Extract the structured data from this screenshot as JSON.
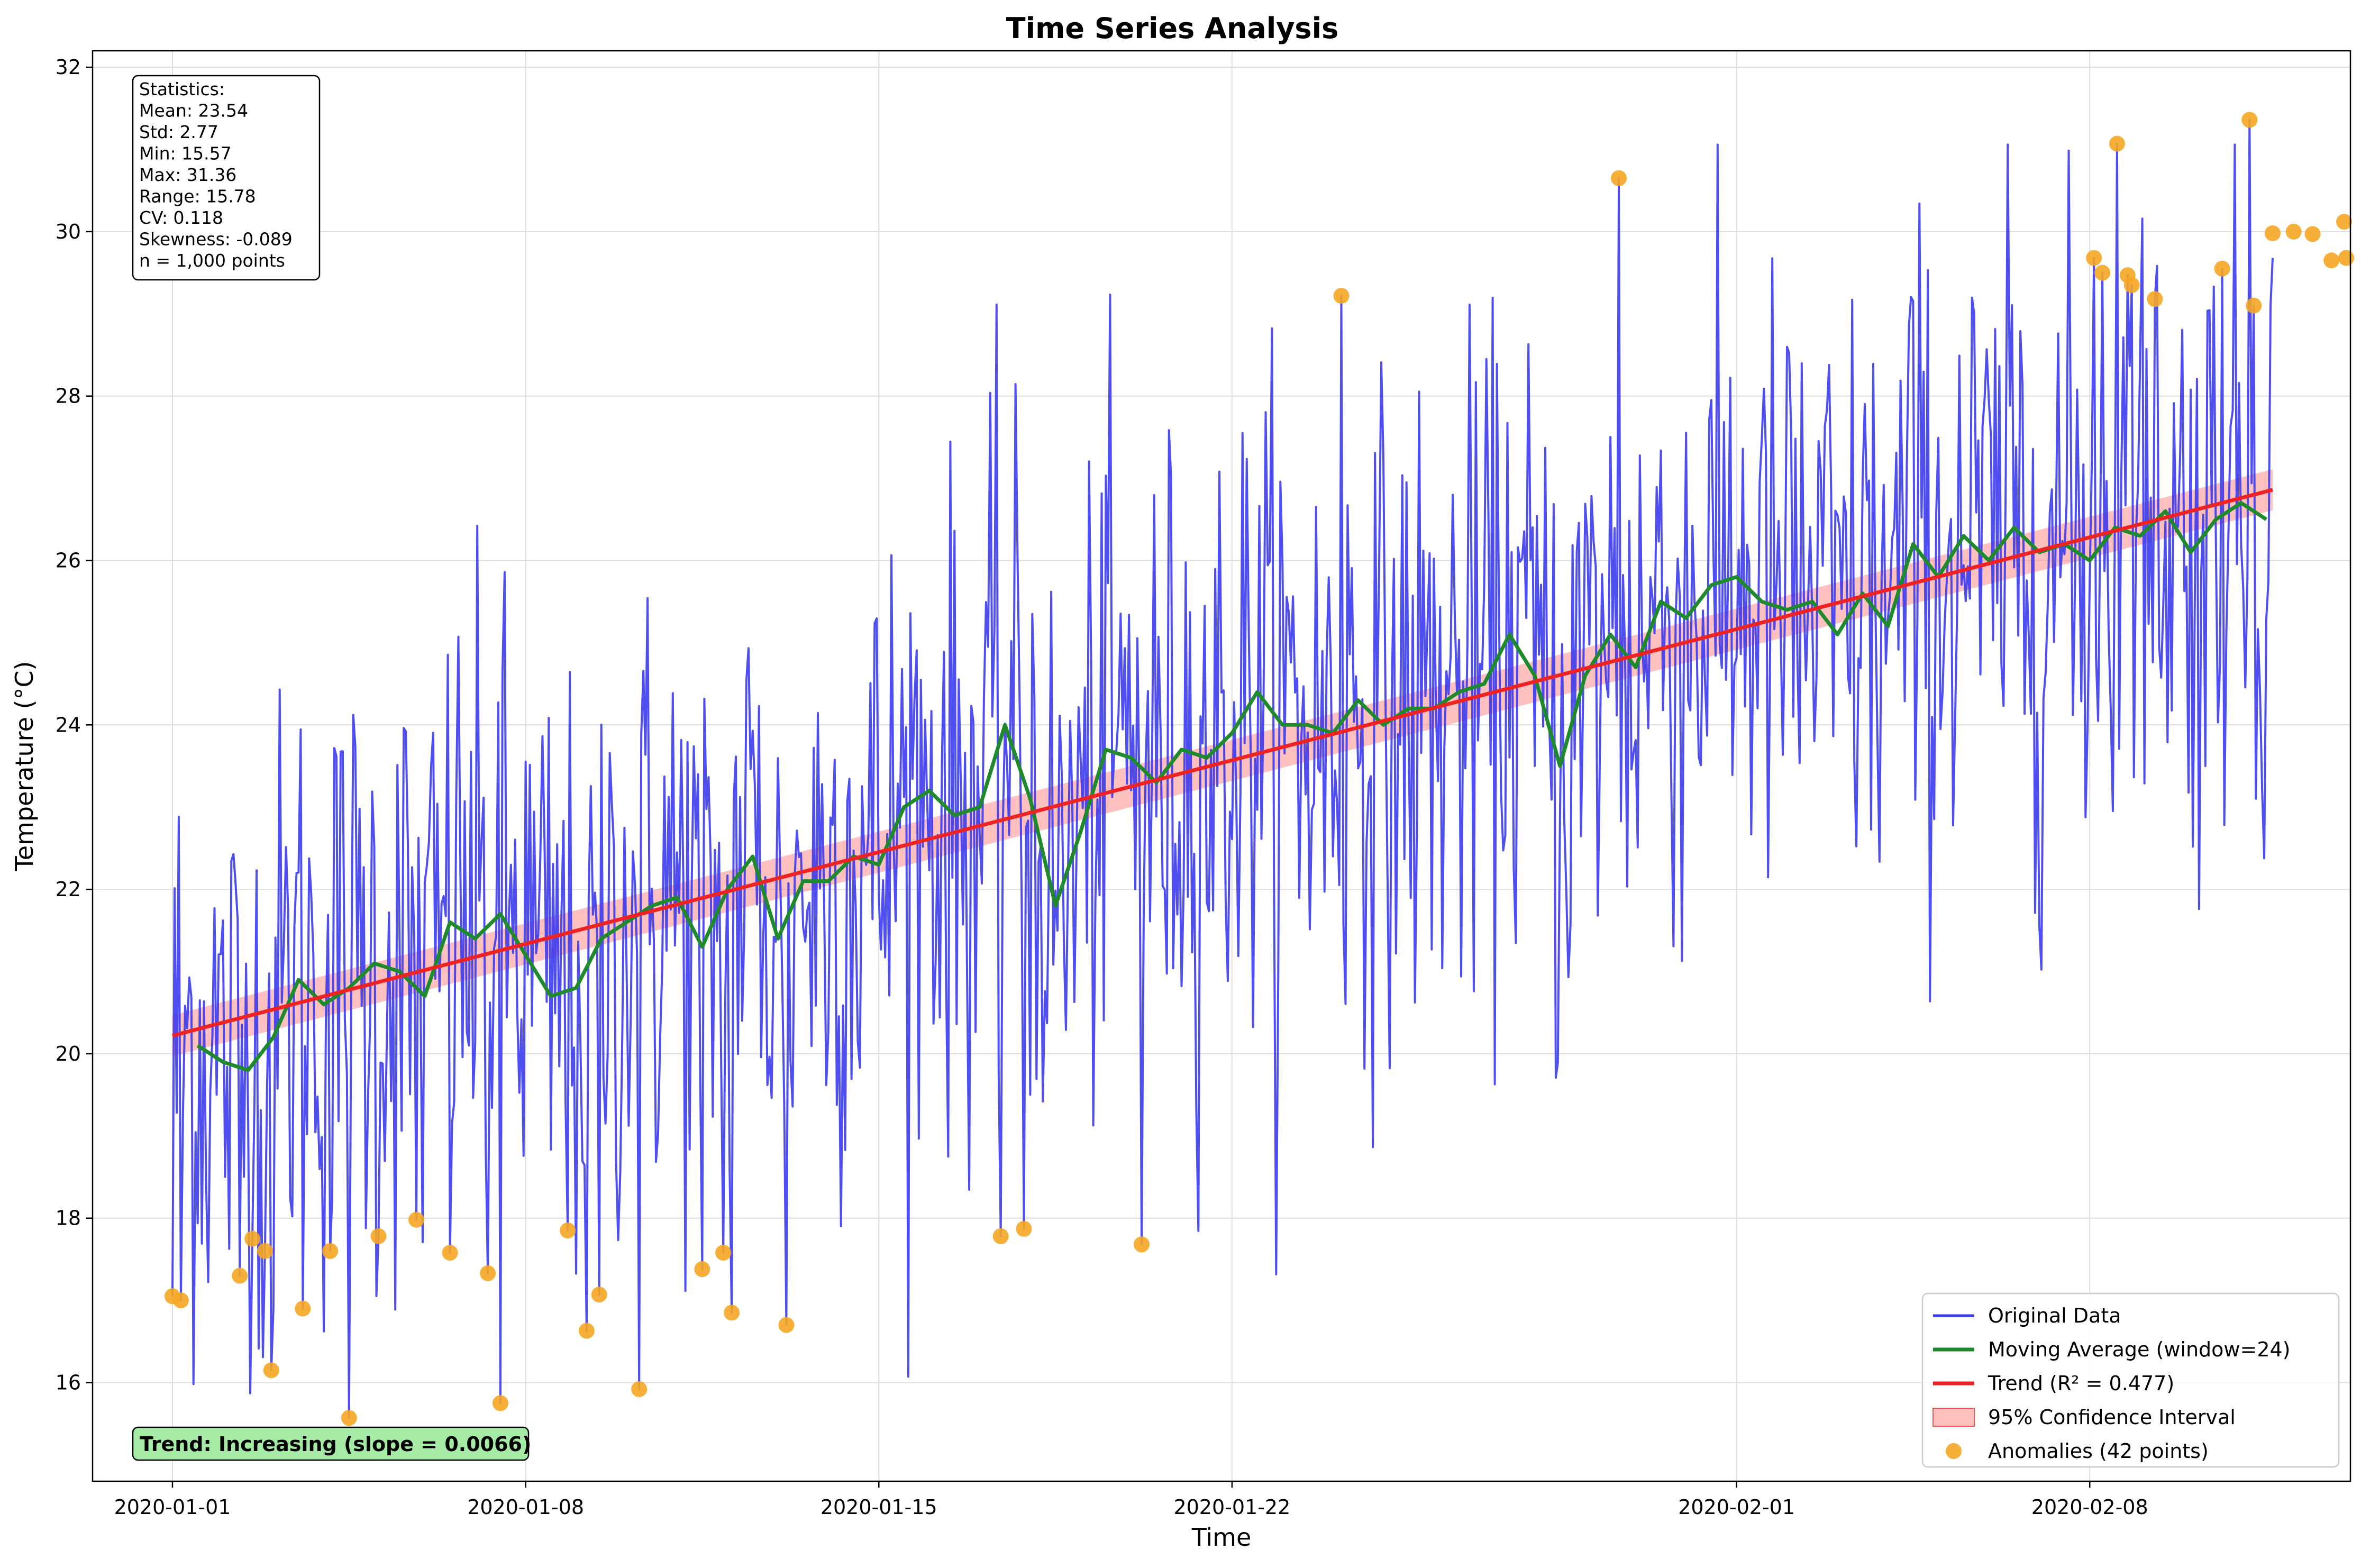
{
  "chart_data": {
    "type": "line",
    "title": "Time Series Analysis",
    "xlabel": "Time",
    "ylabel": "Temperature (°C)",
    "xlim": [
      "2019-12-30T10:00",
      "2020-02-13T04:00"
    ],
    "ylim": [
      14.8,
      32.2
    ],
    "x_ticks": [
      {
        "date": "2020-01-01",
        "label": "2020-01-01"
      },
      {
        "date": "2020-01-08",
        "label": "2020-01-08"
      },
      {
        "date": "2020-01-15",
        "label": "2020-01-15"
      },
      {
        "date": "2020-01-22",
        "label": "2020-01-22"
      },
      {
        "date": "2020-02-01",
        "label": "2020-02-01"
      },
      {
        "date": "2020-02-08",
        "label": "2020-02-08"
      }
    ],
    "y_ticks": [
      16,
      18,
      20,
      22,
      24,
      26,
      28,
      30,
      32
    ],
    "grid": true,
    "legend_position": "bottom-right",
    "series": [
      {
        "name": "Original Data",
        "color": "#3b3bf0",
        "x_start": "2020-01-01T00:00",
        "x_end": "2020-02-11T15:00",
        "n_points": 1000,
        "mean": 23.54,
        "std": 2.77,
        "min": 15.57,
        "max": 31.36
      },
      {
        "name": "Moving Average (window=24)",
        "color": "#1e8a2b",
        "x": [
          "2020-01-01T12:00",
          "2020-01-02T00:00",
          "2020-01-02T12:00",
          "2020-01-03T00:00",
          "2020-01-03T12:00",
          "2020-01-04T00:00",
          "2020-01-04T12:00",
          "2020-01-05T00:00",
          "2020-01-05T12:00",
          "2020-01-06T00:00",
          "2020-01-06T12:00",
          "2020-01-07T00:00",
          "2020-01-07T12:00",
          "2020-01-08T00:00",
          "2020-01-08T12:00",
          "2020-01-09T00:00",
          "2020-01-09T12:00",
          "2020-01-10T00:00",
          "2020-01-10T12:00",
          "2020-01-11T00:00",
          "2020-01-11T12:00",
          "2020-01-12T00:00",
          "2020-01-12T12:00",
          "2020-01-13T00:00",
          "2020-01-13T12:00",
          "2020-01-14T00:00",
          "2020-01-14T12:00",
          "2020-01-15T00:00",
          "2020-01-15T12:00",
          "2020-01-16T00:00",
          "2020-01-16T12:00",
          "2020-01-17T00:00",
          "2020-01-17T12:00",
          "2020-01-18T00:00",
          "2020-01-18T12:00",
          "2020-01-19T00:00",
          "2020-01-19T12:00",
          "2020-01-20T00:00",
          "2020-01-20T12:00",
          "2020-01-21T00:00",
          "2020-01-21T12:00",
          "2020-01-22T00:00",
          "2020-01-22T12:00",
          "2020-01-23T00:00",
          "2020-01-23T12:00",
          "2020-01-24T00:00",
          "2020-01-24T12:00",
          "2020-01-25T00:00",
          "2020-01-25T12:00",
          "2020-01-26T00:00",
          "2020-01-26T12:00",
          "2020-01-27T00:00",
          "2020-01-27T12:00",
          "2020-01-28T00:00",
          "2020-01-28T12:00",
          "2020-01-29T00:00",
          "2020-01-29T12:00",
          "2020-01-30T00:00",
          "2020-01-30T12:00",
          "2020-01-31T00:00",
          "2020-01-31T12:00",
          "2020-02-01T00:00",
          "2020-02-01T12:00",
          "2020-02-02T00:00",
          "2020-02-02T12:00",
          "2020-02-03T00:00",
          "2020-02-03T12:00",
          "2020-02-04T00:00",
          "2020-02-04T12:00",
          "2020-02-05T00:00",
          "2020-02-05T12:00",
          "2020-02-06T00:00",
          "2020-02-06T12:00",
          "2020-02-07T00:00",
          "2020-02-07T12:00",
          "2020-02-08T00:00",
          "2020-02-08T12:00",
          "2020-02-09T00:00",
          "2020-02-09T12:00",
          "2020-02-10T00:00",
          "2020-02-10T12:00",
          "2020-02-11T00:00",
          "2020-02-11T12:00"
        ],
        "y": [
          20.1,
          19.9,
          19.8,
          20.2,
          20.9,
          20.6,
          20.8,
          21.1,
          21.0,
          20.7,
          21.6,
          21.4,
          21.7,
          21.2,
          20.7,
          20.8,
          21.4,
          21.6,
          21.8,
          21.9,
          21.3,
          22.0,
          22.4,
          21.4,
          22.1,
          22.1,
          22.4,
          22.3,
          23.0,
          23.2,
          22.9,
          23.0,
          24.0,
          23.1,
          21.8,
          22.7,
          23.7,
          23.6,
          23.3,
          23.7,
          23.6,
          23.9,
          24.4,
          24.0,
          24.0,
          23.9,
          24.3,
          24.0,
          24.2,
          24.2,
          24.4,
          24.5,
          25.1,
          24.6,
          23.5,
          24.6,
          25.1,
          24.7,
          25.5,
          25.3,
          25.7,
          25.8,
          25.5,
          25.4,
          25.5,
          25.1,
          25.6,
          25.2,
          26.2,
          25.8,
          26.3,
          26.0,
          26.4,
          26.1,
          26.2,
          26.0,
          26.4,
          26.3,
          26.6,
          26.1,
          26.5,
          26.7,
          26.5
        ]
      },
      {
        "name": "Trend (R² = 0.477)",
        "color": "#ee2222",
        "x": [
          "2020-01-01T00:00",
          "2020-02-11T15:00"
        ],
        "y": [
          20.22,
          26.86
        ]
      },
      {
        "name": "95% Confidence Interval",
        "color": "#ff8c8c",
        "x": [
          "2020-01-01T00:00",
          "2020-02-11T15:00"
        ],
        "lower": [
          19.97,
          26.61
        ],
        "upper": [
          20.47,
          27.11
        ]
      },
      {
        "name": "Anomalies (42 points)",
        "color": "#f5a623",
        "x": [
          "2020-01-01T00:00",
          "2020-01-01T04:00",
          "2020-01-02T08:00",
          "2020-01-02T14:00",
          "2020-01-02T20:00",
          "2020-01-02T23:00",
          "2020-01-03T14:00",
          "2020-01-04T03:00",
          "2020-01-04T12:00",
          "2020-01-05T02:00",
          "2020-01-05T20:00",
          "2020-01-06T12:00",
          "2020-01-07T06:00",
          "2020-01-07T12:00",
          "2020-01-08T20:00",
          "2020-01-09T05:00",
          "2020-01-09T11:00",
          "2020-01-10T06:00",
          "2020-01-11T12:00",
          "2020-01-11T22:00",
          "2020-01-12T02:00",
          "2020-01-13T04:00",
          "2020-01-17T10:00",
          "2020-01-17T21:00",
          "2020-01-20T05:00",
          "2020-01-24T04:00",
          "2020-01-29T16:00",
          "2020-02-08T02:00",
          "2020-02-08T06:00",
          "2020-02-08T13:00",
          "2020-02-08T18:00",
          "2020-02-08T20:00",
          "2020-02-09T07:00",
          "2020-02-10T15:00",
          "2020-02-11T04:00",
          "2020-02-11T06:00",
          "2020-02-11T15:00",
          "2020-02-12T01:00",
          "2020-02-12T10:00",
          "2020-02-12T19:00",
          "2020-02-13T01:00",
          "2020-02-13T02:00"
        ],
        "y": [
          17.05,
          17.0,
          17.3,
          17.75,
          17.6,
          16.15,
          16.9,
          17.6,
          15.57,
          17.78,
          17.98,
          17.58,
          17.33,
          15.75,
          17.85,
          16.63,
          17.07,
          15.92,
          17.38,
          17.58,
          16.85,
          16.7,
          17.78,
          17.87,
          17.68,
          29.22,
          30.65,
          29.68,
          29.5,
          31.07,
          29.47,
          29.35,
          29.18,
          29.55,
          31.36,
          29.1,
          29.98,
          30.0,
          29.97,
          29.65,
          30.12,
          29.68
        ]
      }
    ],
    "annotations": {
      "stats": [
        "Statistics:",
        "Mean: 23.54",
        "Std: 2.77",
        "Min: 15.57",
        "Max: 31.36",
        "Range: 15.78",
        "CV: 0.118",
        "Skewness: -0.089",
        "n = 1,000 points"
      ],
      "trend_label": "Trend: Increasing (slope = 0.0066)"
    }
  },
  "colors": {
    "original": "#3b3bf0",
    "moving_average": "#1e8a2b",
    "trend": "#ee2222",
    "confidence_fill": "#ff8c8c",
    "anomaly": "#f5a623",
    "trend_box": "#a5eba5"
  }
}
